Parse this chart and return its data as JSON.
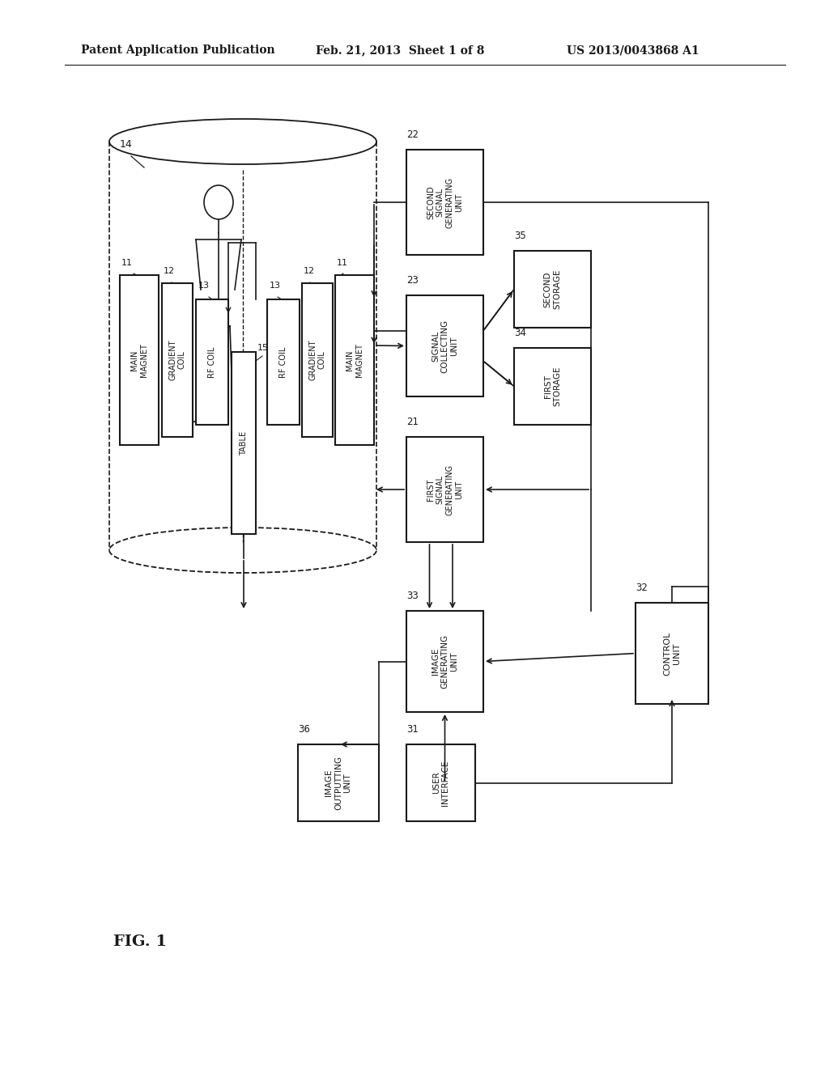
{
  "bg_color": "#ffffff",
  "line_color": "#1a1a1a",
  "header_left": "Patent Application Publication",
  "header_mid": "Feb. 21, 2013  Sheet 1 of 8",
  "header_right": "US 2013/0043868 A1",
  "fig_label": "FIG. 1"
}
